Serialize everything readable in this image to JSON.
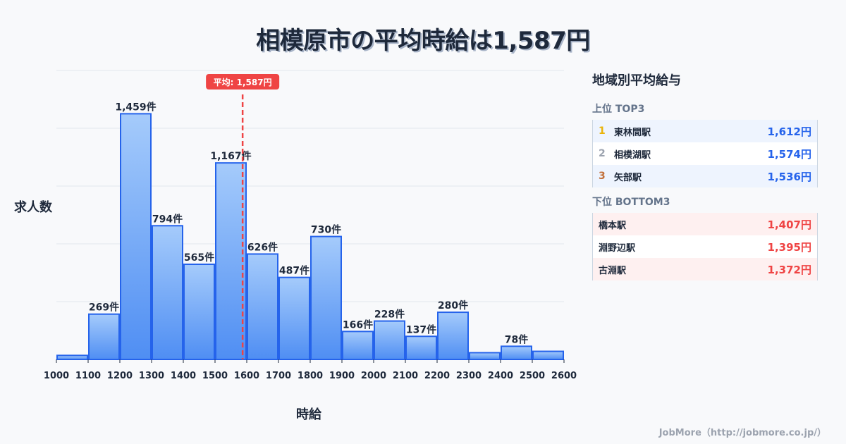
{
  "title": "相模原市の平均時給は1,587円",
  "chart_data": {
    "type": "bar",
    "title": "相模原市の平均時給は1,587円",
    "xlabel": "時給",
    "ylabel": "求人数",
    "x_ticks": [
      "1000",
      "1100",
      "1200",
      "1300",
      "1400",
      "1500",
      "1600",
      "1700",
      "1800",
      "1900",
      "2000",
      "2100",
      "2200",
      "2300",
      "2400",
      "2500",
      "2600"
    ],
    "categories": [
      "1000-1100",
      "1100-1200",
      "1200-1300",
      "1300-1400",
      "1400-1500",
      "1500-1600",
      "1600-1700",
      "1700-1800",
      "1800-1900",
      "1900-2000",
      "2000-2100",
      "2100-2200",
      "2200-2300",
      "2300-2400",
      "2400-2500",
      "2500-2600"
    ],
    "values": [
      24,
      269,
      1459,
      794,
      565,
      1167,
      626,
      487,
      730,
      166,
      228,
      137,
      280,
      40,
      78,
      48
    ],
    "labels": [
      "",
      "269件",
      "1,459件",
      "794件",
      "565件",
      "1,167件",
      "626件",
      "487件",
      "730件",
      "166件",
      "228件",
      "137件",
      "280件",
      "",
      "78件",
      ""
    ],
    "mean_line": {
      "value": 1587,
      "label": "平均: 1,587円",
      "color": "#ef4444"
    },
    "xlim": [
      1000,
      2600
    ],
    "ylim": [
      0,
      1716
    ],
    "grid": true,
    "bar_color": "#60a5fa",
    "bar_edge_color": "#2563eb"
  },
  "panel": {
    "title": "地域別平均給与",
    "top_heading": "上位 TOP3",
    "top": [
      {
        "rank": "1",
        "name": "東林間駅",
        "value": "1,612円",
        "rank_color": "#eab308"
      },
      {
        "rank": "2",
        "name": "相模湖駅",
        "value": "1,574円",
        "rank_color": "#9ca3af"
      },
      {
        "rank": "3",
        "name": "矢部駅",
        "value": "1,536円",
        "rank_color": "#c2703a"
      }
    ],
    "bottom_heading": "下位 BOTTOM3",
    "bottom": [
      {
        "name": "橋本駅",
        "value": "1,407円"
      },
      {
        "name": "淵野辺駅",
        "value": "1,395円"
      },
      {
        "name": "古淵駅",
        "value": "1,372円"
      }
    ]
  },
  "footer": "JobMore（http://jobmore.co.jp/）"
}
